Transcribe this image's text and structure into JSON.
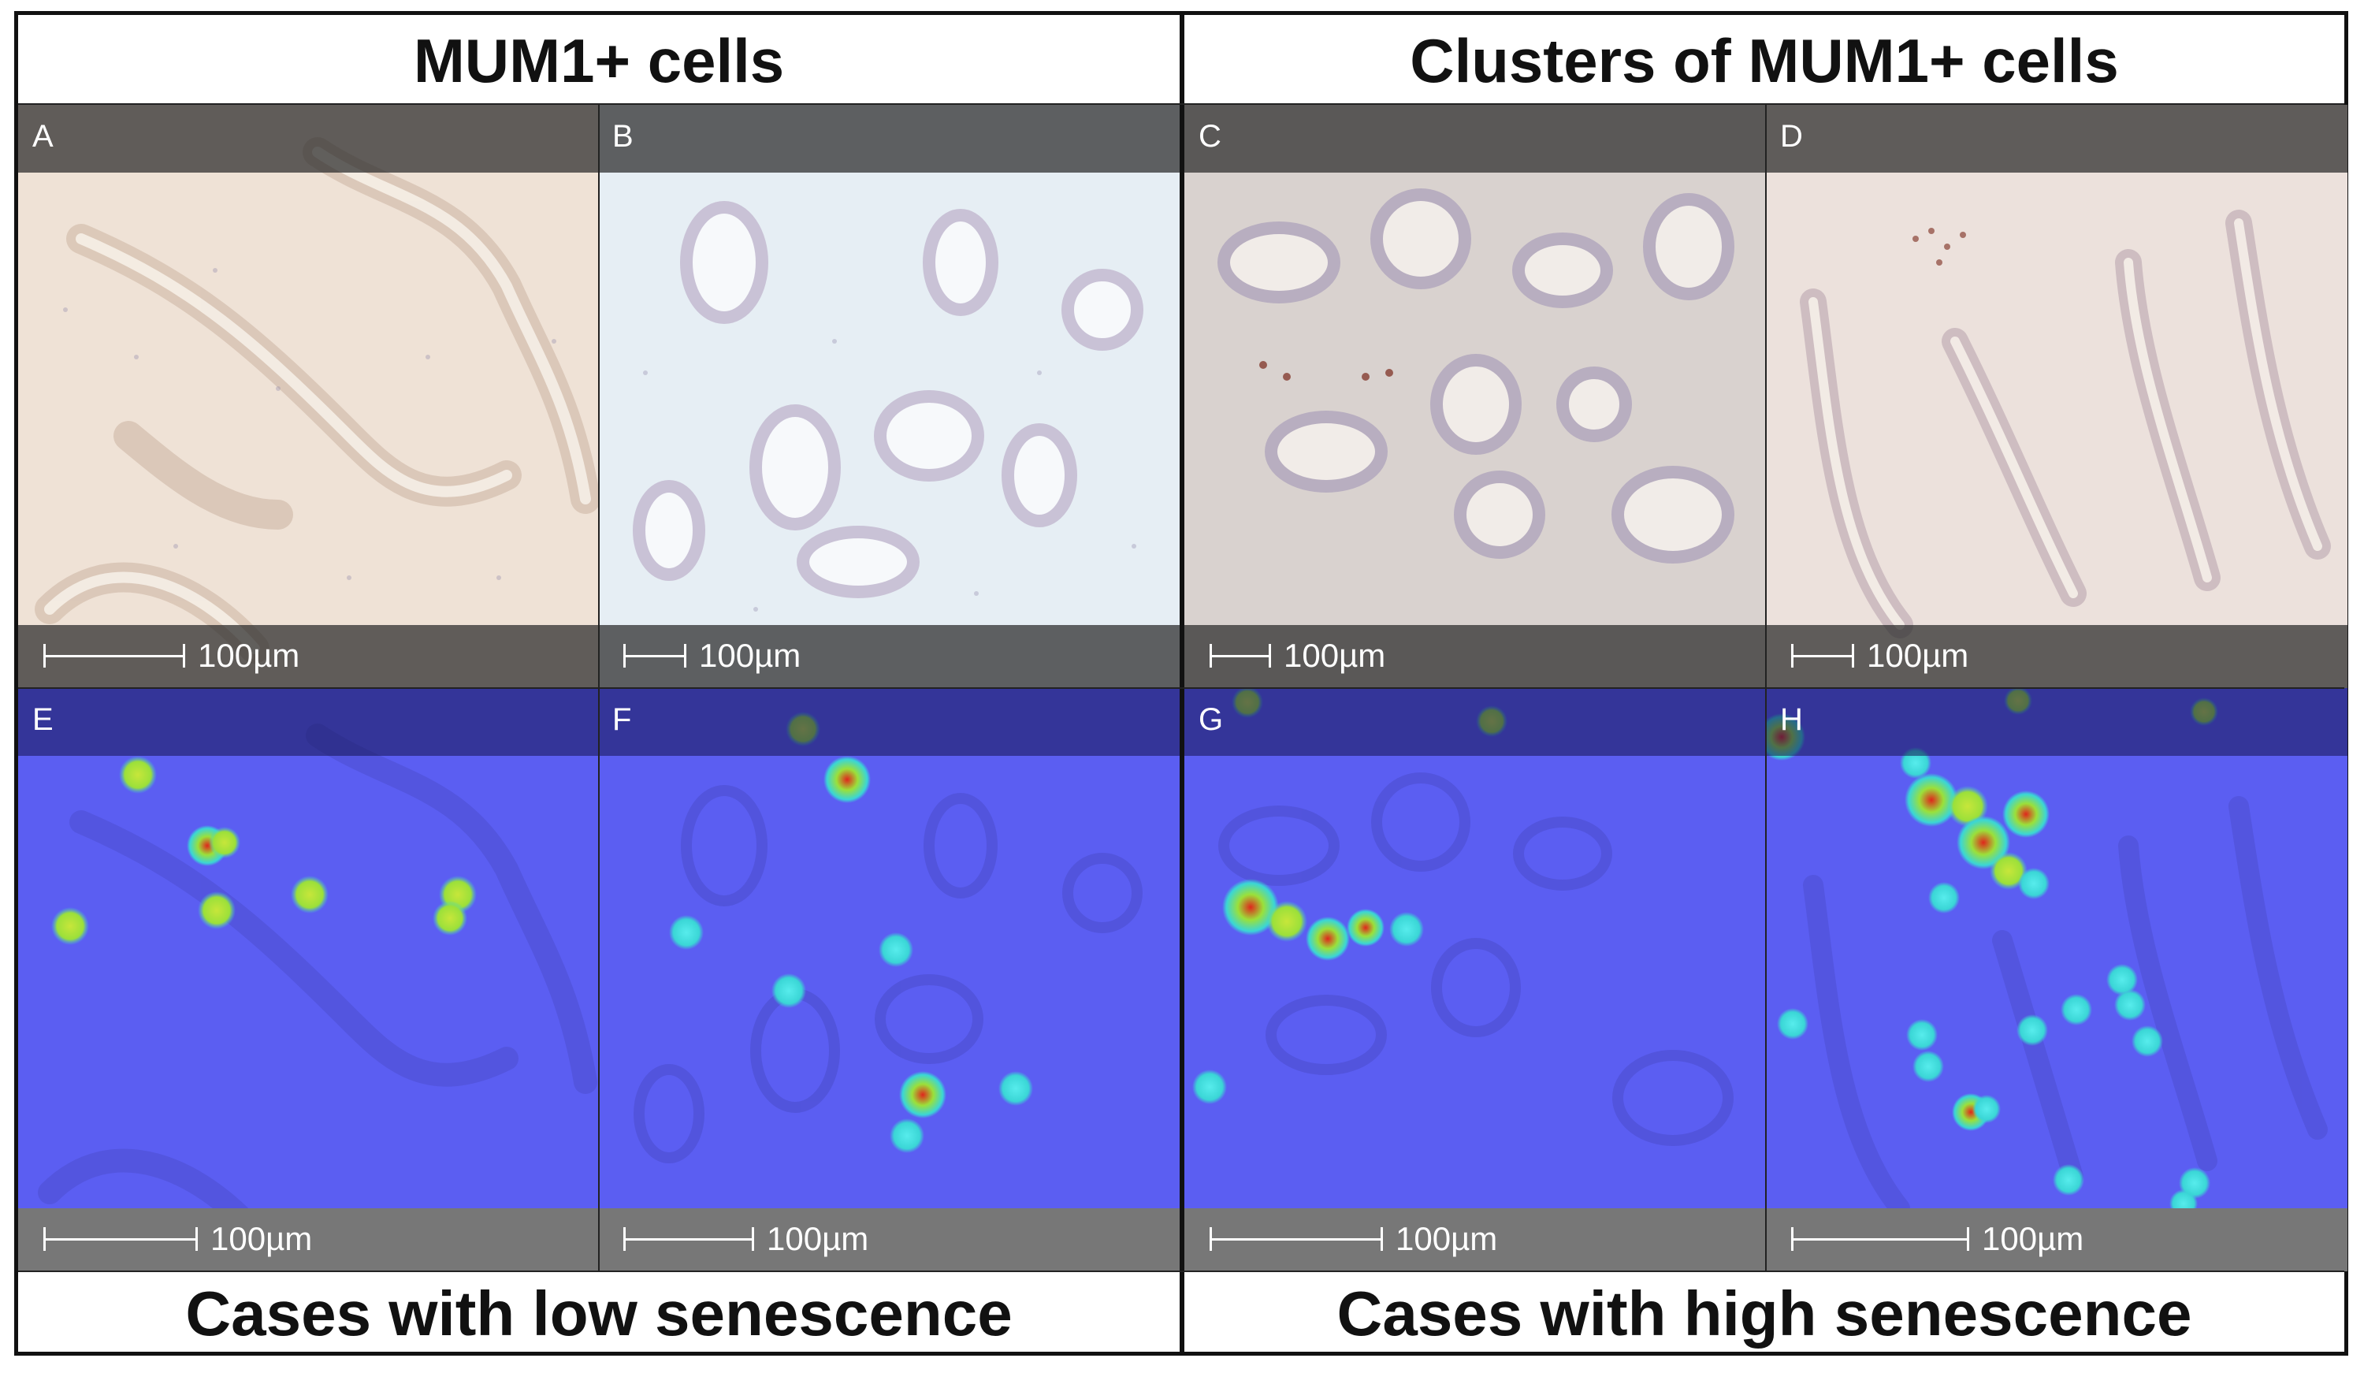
{
  "headers": {
    "left": "MUM1+ cells",
    "right": "Clusters of MUM1+ cells"
  },
  "footers": {
    "left": "Cases with low senescence",
    "right": "Cases with high senescence"
  },
  "panels": {
    "A": {
      "letter": "A",
      "scale": "100µm"
    },
    "B": {
      "letter": "B",
      "scale": "100µm"
    },
    "C": {
      "letter": "C",
      "scale": "100µm"
    },
    "D": {
      "letter": "D",
      "scale": "100µm"
    },
    "E": {
      "letter": "E",
      "scale": "100µm"
    },
    "F": {
      "letter": "F",
      "scale": "100µm"
    },
    "G": {
      "letter": "G",
      "scale": "100µm"
    },
    "H": {
      "letter": "H",
      "scale": "100µm"
    }
  },
  "colors": {
    "tissue_he_warm": "#efe2d6",
    "tissue_he_cool": "#e6eef4",
    "tissue_he_gray": "#d9d2cf",
    "heatmap_background": "#5b5ef2",
    "hotspot_low": "#3ad6d6",
    "hotspot_mid": "#9be03a",
    "hotspot_high": "#e0261c"
  }
}
